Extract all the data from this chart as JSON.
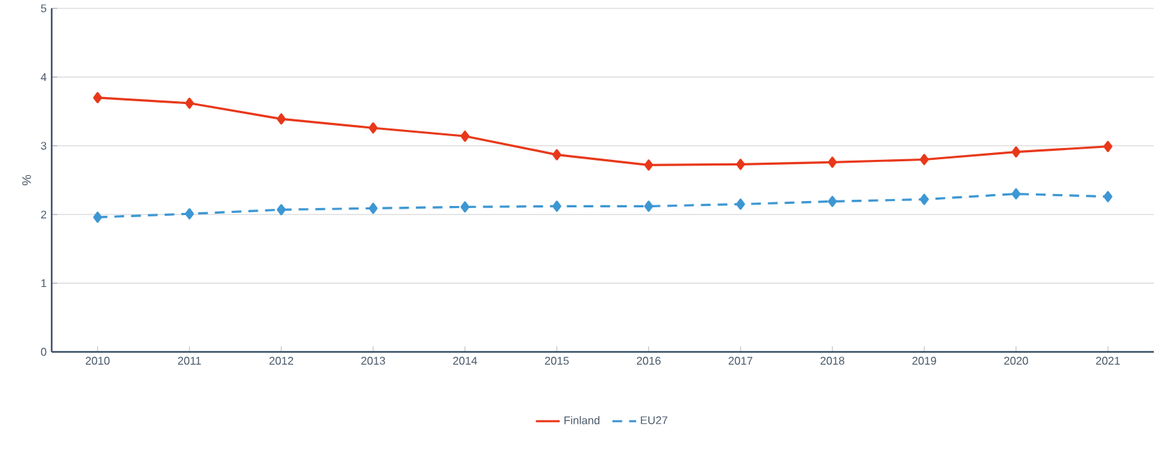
{
  "chart_data": {
    "type": "line",
    "ylabel": "%",
    "categories": [
      "2010",
      "2011",
      "2012",
      "2013",
      "2014",
      "2015",
      "2016",
      "2017",
      "2018",
      "2019",
      "2020",
      "2021"
    ],
    "series": [
      {
        "name": "Finland",
        "color": "#e8381a",
        "line_style": "solid",
        "values": [
          3.7,
          3.62,
          3.39,
          3.26,
          3.14,
          2.87,
          2.72,
          2.73,
          2.76,
          2.8,
          2.91,
          2.99
        ]
      },
      {
        "name": "EU27",
        "color": "#3d97d3",
        "line_style": "dashed",
        "values": [
          1.96,
          2.01,
          2.07,
          2.09,
          2.11,
          2.12,
          2.12,
          2.15,
          2.19,
          2.22,
          2.3,
          2.26
        ]
      }
    ],
    "ylim": [
      0,
      5
    ],
    "yticks": [
      0,
      1,
      2,
      3,
      4,
      5
    ],
    "grid": "y",
    "legend": "bottom",
    "marker": "diamond"
  }
}
